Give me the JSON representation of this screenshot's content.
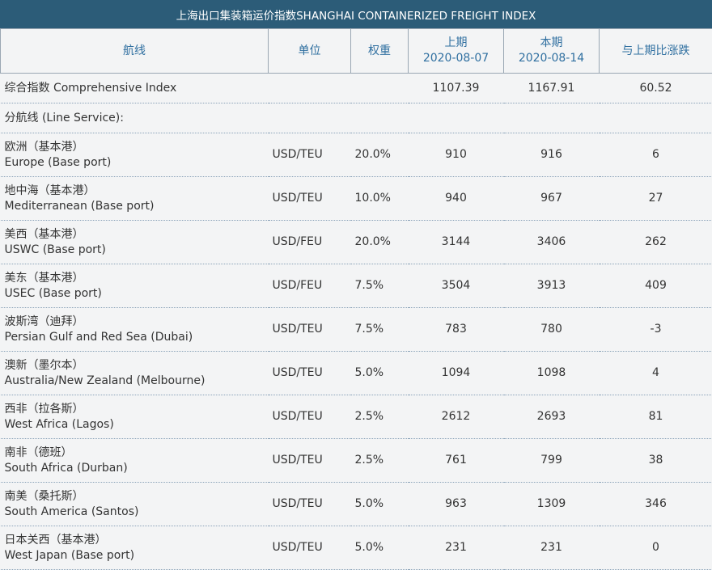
{
  "title": "上海出口集装箱运价指数SHANGHAI CONTAINERIZED FREIGHT INDEX",
  "headers": {
    "route": "航线",
    "unit": "单位",
    "weight": "权重",
    "prev_label": "上期",
    "prev_date": "2020-08-07",
    "curr_label": "本期",
    "curr_date": "2020-08-14",
    "change": "与上期比涨跌"
  },
  "comprehensive": {
    "name": "综合指数 Comprehensive Index",
    "prev": "1107.39",
    "curr": "1167.91",
    "change": "60.52"
  },
  "line_service_label": "分航线 (Line Service):",
  "rows": [
    {
      "cn": "欧洲（基本港）",
      "en": "Europe (Base port)",
      "unit": "USD/TEU",
      "weight": "20.0%",
      "prev": "910",
      "curr": "916",
      "change": "6"
    },
    {
      "cn": "地中海（基本港）",
      "en": "Mediterranean (Base port)",
      "unit": "USD/TEU",
      "weight": "10.0%",
      "prev": "940",
      "curr": "967",
      "change": "27"
    },
    {
      "cn": "美西（基本港）",
      "en": "USWC (Base port)",
      "unit": "USD/FEU",
      "weight": "20.0%",
      "prev": "3144",
      "curr": "3406",
      "change": "262"
    },
    {
      "cn": "美东（基本港）",
      "en": "USEC (Base port)",
      "unit": "USD/FEU",
      "weight": "7.5%",
      "prev": "3504",
      "curr": "3913",
      "change": "409"
    },
    {
      "cn": "波斯湾（迪拜）",
      "en": "Persian Gulf and Red Sea (Dubai)",
      "unit": "USD/TEU",
      "weight": "7.5%",
      "prev": "783",
      "curr": "780",
      "change": "-3"
    },
    {
      "cn": "澳新（墨尔本）",
      "en": "Australia/New Zealand (Melbourne)",
      "unit": "USD/TEU",
      "weight": "5.0%",
      "prev": "1094",
      "curr": "1098",
      "change": "4"
    },
    {
      "cn": "西非（拉各斯）",
      "en": "West Africa (Lagos)",
      "unit": "USD/TEU",
      "weight": "2.5%",
      "prev": "2612",
      "curr": "2693",
      "change": "81"
    },
    {
      "cn": "南非（德班）",
      "en": "South Africa (Durban)",
      "unit": "USD/TEU",
      "weight": "2.5%",
      "prev": "761",
      "curr": "799",
      "change": "38"
    },
    {
      "cn": "南美（桑托斯）",
      "en": "South America (Santos)",
      "unit": "USD/TEU",
      "weight": "5.0%",
      "prev": "963",
      "curr": "1309",
      "change": "346"
    },
    {
      "cn": "日本关西（基本港）",
      "en": "West Japan (Base port)",
      "unit": "USD/TEU",
      "weight": "5.0%",
      "prev": "231",
      "curr": "231",
      "change": "0"
    }
  ]
}
